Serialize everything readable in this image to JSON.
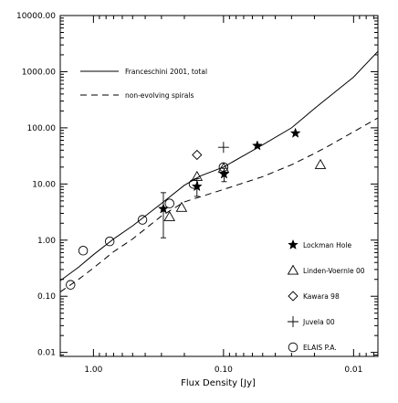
{
  "chart_data": {
    "type": "scatter",
    "title": "",
    "xlabel": "Flux Density [Jy]",
    "ylabel": "",
    "x_scale": "log",
    "x_reversed": true,
    "y_scale": "log",
    "xlim": [
      1.8,
      0.0065
    ],
    "ylim": [
      0.0085,
      10000
    ],
    "x_ticks": [
      {
        "value": 1.0,
        "label": "1.00"
      },
      {
        "value": 0.1,
        "label": "0.10"
      },
      {
        "value": 0.01,
        "label": "0.01"
      }
    ],
    "y_ticks": [
      {
        "value": 0.01,
        "label": "0.01"
      },
      {
        "value": 0.1,
        "label": "0.10"
      },
      {
        "value": 1,
        "label": "1.00"
      },
      {
        "value": 10,
        "label": "10.00"
      },
      {
        "value": 100,
        "label": "100.00"
      },
      {
        "value": 1000,
        "label": "1000.00"
      },
      {
        "value": 10000,
        "label": "10000.00"
      }
    ],
    "grid": false,
    "legend_position": "top-left and lower-right",
    "lines": [
      {
        "name": "Franceschini 2001, total",
        "style": "solid",
        "x": [
          1.8,
          1.3,
          1.0,
          0.7,
          0.5,
          0.3,
          0.2,
          0.15,
          0.1,
          0.07,
          0.05,
          0.03,
          0.02,
          0.01,
          0.0065
        ],
        "y": [
          0.19,
          0.33,
          0.55,
          1.05,
          1.8,
          4.5,
          9.5,
          14.0,
          20.0,
          32.0,
          50.0,
          100.0,
          220.0,
          800.0,
          2300.0
        ]
      },
      {
        "name": "non-evolving spirals",
        "style": "dashed",
        "x": [
          1.8,
          1.3,
          1.0,
          0.7,
          0.5,
          0.3,
          0.2,
          0.1,
          0.05,
          0.03,
          0.02,
          0.015,
          0.01,
          0.0065
        ],
        "y": [
          0.12,
          0.2,
          0.32,
          0.62,
          1.05,
          2.7,
          4.8,
          8.0,
          13.5,
          22.0,
          35.0,
          50.0,
          85.0,
          150.0
        ]
      }
    ],
    "series": [
      {
        "name": "Lockman Hole",
        "marker": "star",
        "points": [
          {
            "x": 0.29,
            "y": 3.6,
            "err": [
              1.1,
              7.0
            ]
          },
          {
            "x": 0.16,
            "y": 9.0,
            "err": [
              6.0,
              12.5
            ]
          },
          {
            "x": 0.099,
            "y": 15.0,
            "err": [
              11.0,
              19.0
            ]
          },
          {
            "x": 0.055,
            "y": 48.0
          },
          {
            "x": 0.028,
            "y": 80.0
          }
        ]
      },
      {
        "name": "Linden-Voernle 00",
        "marker": "triangle",
        "points": [
          {
            "x": 0.26,
            "y": 2.6
          },
          {
            "x": 0.21,
            "y": 3.8
          },
          {
            "x": 0.16,
            "y": 13.5
          },
          {
            "x": 0.1,
            "y": 19.0
          },
          {
            "x": 0.018,
            "y": 22.0
          }
        ]
      },
      {
        "name": "Kawara 98",
        "marker": "diamond",
        "points": [
          {
            "x": 0.16,
            "y": 33.0
          }
        ]
      },
      {
        "name": "Juvela 00",
        "marker": "plus",
        "points": [
          {
            "x": 0.1,
            "y": 45.0
          }
        ]
      },
      {
        "name": "ELAIS P.A.",
        "marker": "circle",
        "points": [
          {
            "x": 1.5,
            "y": 0.16
          },
          {
            "x": 1.2,
            "y": 0.65
          },
          {
            "x": 0.75,
            "y": 0.95
          },
          {
            "x": 0.42,
            "y": 2.3
          },
          {
            "x": 0.26,
            "y": 4.5
          },
          {
            "x": 0.17,
            "y": 10.0
          },
          {
            "x": 0.1,
            "y": 20.0
          }
        ]
      }
    ]
  }
}
